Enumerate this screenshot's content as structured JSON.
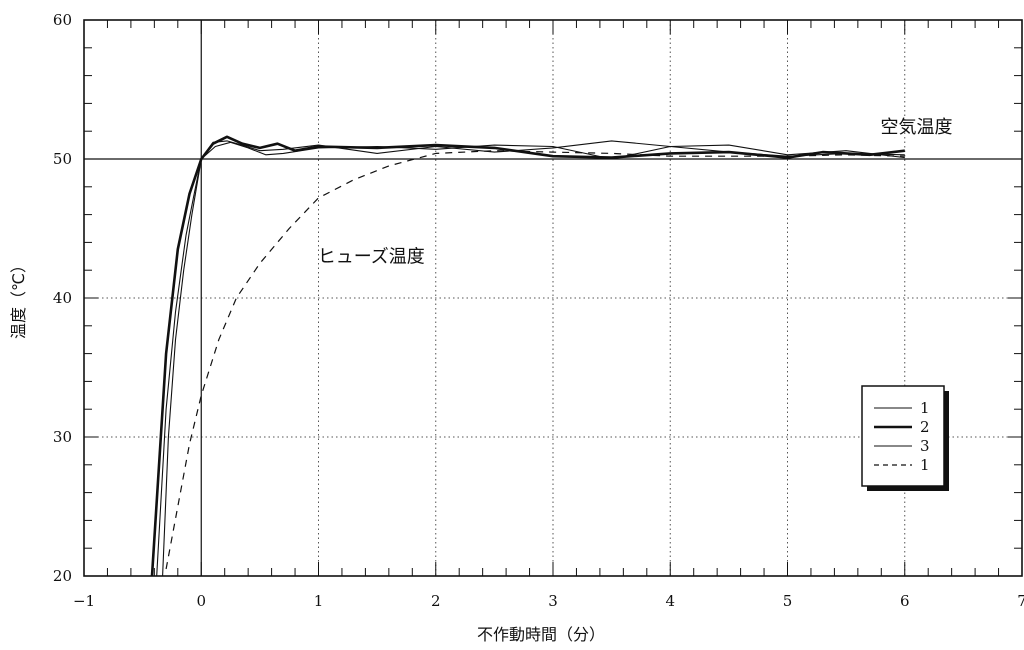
{
  "chart_data": {
    "type": "line",
    "title": "",
    "xlabel": "不作動時間（分）",
    "ylabel": "温度（℃）",
    "xlim": [
      -1,
      7
    ],
    "ylim": [
      20,
      60
    ],
    "x_ticks": [
      -1,
      0,
      1,
      2,
      3,
      4,
      5,
      6,
      7
    ],
    "y_ticks": [
      20,
      30,
      40,
      50,
      60
    ],
    "grid": true,
    "grid_style": "dotted",
    "reference_lines": {
      "x": 0,
      "y": 50
    },
    "legend_position": "right",
    "annotations": [
      {
        "text": "空気温度",
        "x": 6.1,
        "y": 52.3
      },
      {
        "text": "ヒューズ温度",
        "x": 1.45,
        "y": 43.0
      }
    ],
    "series": [
      {
        "name": "1",
        "style": "thin",
        "points": [
          [
            -0.33,
            20
          ],
          [
            -0.28,
            30
          ],
          [
            -0.22,
            37
          ],
          [
            -0.15,
            42
          ],
          [
            -0.08,
            46
          ],
          [
            0,
            50
          ],
          [
            0.1,
            51.2
          ],
          [
            0.22,
            51.3
          ],
          [
            0.35,
            51
          ],
          [
            0.5,
            50.6
          ],
          [
            0.7,
            50.7
          ],
          [
            1,
            51
          ],
          [
            1.5,
            50.4
          ],
          [
            2,
            50.9
          ],
          [
            2.5,
            50.5
          ],
          [
            3,
            50.8
          ],
          [
            3.5,
            51.3
          ],
          [
            4,
            50.9
          ],
          [
            4.5,
            50.5
          ],
          [
            5,
            50.2
          ],
          [
            5.5,
            50.4
          ],
          [
            6,
            50.3
          ]
        ]
      },
      {
        "name": "2",
        "style": "thick",
        "points": [
          [
            -0.42,
            20
          ],
          [
            -0.3,
            36
          ],
          [
            -0.2,
            43.5
          ],
          [
            -0.1,
            47.5
          ],
          [
            0,
            50
          ],
          [
            0.1,
            51.1
          ],
          [
            0.22,
            51.6
          ],
          [
            0.35,
            51.1
          ],
          [
            0.5,
            50.8
          ],
          [
            0.65,
            51.1
          ],
          [
            0.8,
            50.6
          ],
          [
            1,
            50.9
          ],
          [
            1.5,
            50.8
          ],
          [
            2,
            51
          ],
          [
            2.5,
            50.8
          ],
          [
            3,
            50.2
          ],
          [
            3.5,
            50.1
          ],
          [
            4,
            50.4
          ],
          [
            4.5,
            50.5
          ],
          [
            5,
            50.1
          ],
          [
            5.3,
            50.5
          ],
          [
            5.7,
            50.3
          ],
          [
            6,
            50.6
          ]
        ]
      },
      {
        "name": "3",
        "style": "thin",
        "points": [
          [
            -0.38,
            20
          ],
          [
            -0.3,
            32
          ],
          [
            -0.22,
            39
          ],
          [
            -0.13,
            44.5
          ],
          [
            -0.06,
            47.5
          ],
          [
            0,
            50
          ],
          [
            0.12,
            50.9
          ],
          [
            0.25,
            51.2
          ],
          [
            0.4,
            50.8
          ],
          [
            0.55,
            50.3
          ],
          [
            0.7,
            50.4
          ],
          [
            1,
            50.8
          ],
          [
            1.5,
            50.9
          ],
          [
            2,
            50.7
          ],
          [
            2.5,
            51
          ],
          [
            3,
            50.9
          ],
          [
            3.5,
            50
          ],
          [
            4,
            50.9
          ],
          [
            4.5,
            51
          ],
          [
            5,
            50.3
          ],
          [
            5.5,
            50.6
          ],
          [
            6,
            50.1
          ]
        ]
      },
      {
        "name": "1",
        "style": "dashed",
        "points": [
          [
            -0.3,
            20.5
          ],
          [
            -0.2,
            25
          ],
          [
            -0.1,
            29.5
          ],
          [
            0,
            33
          ],
          [
            0.15,
            37
          ],
          [
            0.3,
            40
          ],
          [
            0.5,
            42.5
          ],
          [
            0.75,
            45
          ],
          [
            1,
            47.2
          ],
          [
            1.3,
            48.5
          ],
          [
            1.6,
            49.5
          ],
          [
            2,
            50.4
          ],
          [
            2.5,
            50.6
          ],
          [
            3,
            50.5
          ],
          [
            3.5,
            50.4
          ],
          [
            4,
            50.2
          ],
          [
            4.5,
            50.2
          ],
          [
            5,
            50.2
          ],
          [
            5.5,
            50.3
          ],
          [
            6,
            50.2
          ]
        ]
      }
    ]
  }
}
